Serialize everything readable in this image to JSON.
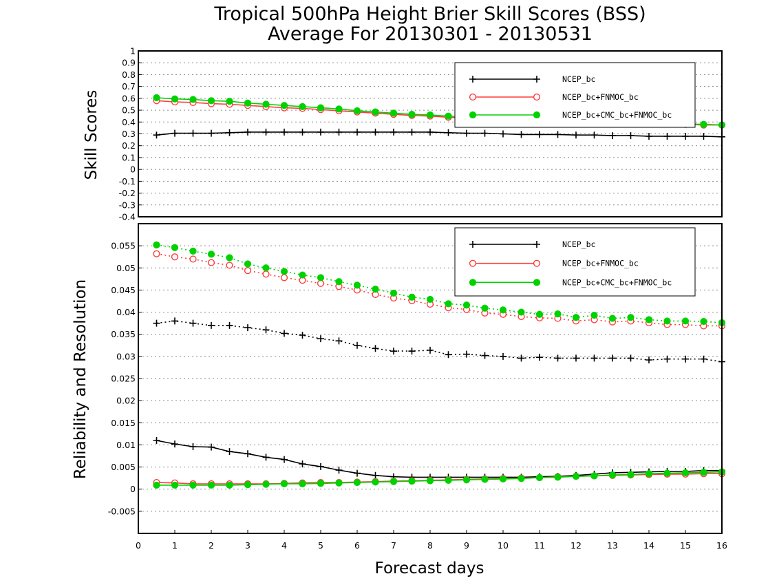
{
  "chart_data": [
    {
      "type": "line",
      "title": "Tropical 500hPa Height Brier Skill Scores (BSS)",
      "subtitle": "Average For 20130301 - 20130531",
      "xlabel": "",
      "ylabel": "Skill Scores",
      "xlim": [
        0,
        16
      ],
      "ylim": [
        -0.4,
        1.0
      ],
      "yticks": [
        -0.4,
        -0.3,
        -0.2,
        -0.1,
        0,
        0.1,
        0.2,
        0.3,
        0.4,
        0.5,
        0.6,
        0.7,
        0.8,
        0.9,
        1
      ],
      "ytick_labels": [
        "-0.4",
        "-0.3",
        "-0.2",
        "-0.1",
        "0",
        "0.1",
        "0.2",
        "0.3",
        "0.4",
        "0.5",
        "0.6",
        "0.7",
        "0.8",
        "0.9",
        "1"
      ],
      "grid": true,
      "legend_position": "top-right",
      "x": [
        0.5,
        1,
        1.5,
        2,
        2.5,
        3,
        3.5,
        4,
        4.5,
        5,
        5.5,
        6,
        6.5,
        7,
        7.5,
        8,
        8.5,
        9,
        9.5,
        10,
        10.5,
        11,
        11.5,
        12,
        12.5,
        13,
        13.5,
        14,
        14.5,
        15,
        15.5,
        16
      ],
      "series": [
        {
          "name": "NCEP_bc",
          "color": "#000000",
          "marker": "plus",
          "values": [
            0.29,
            0.305,
            0.305,
            0.305,
            0.31,
            0.315,
            0.315,
            0.315,
            0.315,
            0.315,
            0.315,
            0.315,
            0.315,
            0.315,
            0.315,
            0.315,
            0.31,
            0.305,
            0.305,
            0.3,
            0.295,
            0.295,
            0.295,
            0.29,
            0.29,
            0.285,
            0.285,
            0.28,
            0.28,
            0.28,
            0.28,
            0.275
          ]
        },
        {
          "name": "NCEP_bc+FNMOC_bc",
          "color": "#ff3c3c",
          "marker": "circle-open",
          "values": [
            0.58,
            0.57,
            0.565,
            0.555,
            0.55,
            0.54,
            0.53,
            0.52,
            0.515,
            0.505,
            0.495,
            0.485,
            0.475,
            0.465,
            0.455,
            0.45,
            0.44,
            0.435,
            0.43,
            0.425,
            0.42,
            0.415,
            0.41,
            0.405,
            0.4,
            0.395,
            0.395,
            0.39,
            0.385,
            0.38,
            0.375,
            0.375
          ]
        },
        {
          "name": "NCEP_bc+CMC_bc+FNMOC_bc",
          "color": "#00d200",
          "marker": "circle-filled",
          "values": [
            0.605,
            0.595,
            0.59,
            0.58,
            0.575,
            0.56,
            0.55,
            0.54,
            0.53,
            0.52,
            0.51,
            0.495,
            0.485,
            0.475,
            0.465,
            0.46,
            0.45,
            0.445,
            0.44,
            0.435,
            0.43,
            0.425,
            0.42,
            0.415,
            0.41,
            0.405,
            0.4,
            0.395,
            0.39,
            0.385,
            0.38,
            0.375
          ]
        }
      ]
    },
    {
      "type": "line",
      "title": "",
      "xlabel": "Forecast days",
      "ylabel": "Reliability and Resolution",
      "xlim": [
        0,
        16
      ],
      "ylim": [
        -0.01,
        0.06
      ],
      "xticks": [
        0,
        1,
        2,
        3,
        4,
        5,
        6,
        7,
        8,
        9,
        10,
        11,
        12,
        13,
        14,
        15,
        16
      ],
      "xtick_labels": [
        "0",
        "1",
        "2",
        "3",
        "4",
        "5",
        "6",
        "7",
        "8",
        "9",
        "10",
        "11",
        "12",
        "13",
        "14",
        "15",
        "16"
      ],
      "yticks": [
        -0.005,
        0,
        0.005,
        0.01,
        0.015,
        0.02,
        0.025,
        0.03,
        0.035,
        0.04,
        0.045,
        0.05,
        0.055
      ],
      "ytick_labels": [
        "-0.005",
        "0",
        "0.005",
        "0.01",
        "0.015",
        "0.02",
        "0.025",
        "0.03",
        "0.035",
        "0.04",
        "0.045",
        "0.05",
        "0.055"
      ],
      "grid": true,
      "legend_position": "top-right",
      "x": [
        0.5,
        1,
        1.5,
        2,
        2.5,
        3,
        3.5,
        4,
        4.5,
        5,
        5.5,
        6,
        6.5,
        7,
        7.5,
        8,
        8.5,
        9,
        9.5,
        10,
        10.5,
        11,
        11.5,
        12,
        12.5,
        13,
        13.5,
        14,
        14.5,
        15,
        15.5,
        16
      ],
      "series": [
        {
          "name": "NCEP_bc",
          "component": "resolution",
          "color": "#000000",
          "marker": "plus",
          "line": "dotted",
          "values": [
            0.0375,
            0.038,
            0.0375,
            0.037,
            0.037,
            0.0365,
            0.036,
            0.0352,
            0.0348,
            0.034,
            0.0335,
            0.0325,
            0.0318,
            0.0312,
            0.0312,
            0.0314,
            0.0304,
            0.0305,
            0.0302,
            0.03,
            0.0296,
            0.0298,
            0.0296,
            0.0296,
            0.0296,
            0.0296,
            0.0296,
            0.0292,
            0.0294,
            0.0294,
            0.0294,
            0.0288
          ]
        },
        {
          "name": "NCEP_bc+FNMOC_bc",
          "component": "resolution",
          "color": "#ff3c3c",
          "marker": "circle-open",
          "line": "dotted",
          "values": [
            0.0532,
            0.0525,
            0.052,
            0.0512,
            0.0506,
            0.0494,
            0.0486,
            0.0478,
            0.0472,
            0.0465,
            0.0458,
            0.045,
            0.044,
            0.0432,
            0.0426,
            0.0418,
            0.041,
            0.0406,
            0.0398,
            0.0395,
            0.039,
            0.0387,
            0.0386,
            0.038,
            0.0383,
            0.0378,
            0.038,
            0.0376,
            0.0372,
            0.0372,
            0.0369,
            0.0369
          ]
        },
        {
          "name": "NCEP_bc+CMC_bc+FNMOC_bc",
          "component": "resolution",
          "color": "#00d200",
          "marker": "circle-filled",
          "line": "dotted",
          "values": [
            0.0552,
            0.0546,
            0.0538,
            0.0531,
            0.0523,
            0.0509,
            0.05,
            0.0492,
            0.0484,
            0.0478,
            0.0469,
            0.0461,
            0.0452,
            0.0443,
            0.0434,
            0.0429,
            0.0419,
            0.0416,
            0.0409,
            0.0405,
            0.04,
            0.0395,
            0.0396,
            0.0388,
            0.0393,
            0.0386,
            0.0388,
            0.0383,
            0.038,
            0.038,
            0.0379,
            0.0376
          ]
        },
        {
          "name": "NCEP_bc",
          "component": "reliability",
          "color": "#000000",
          "marker": "plus",
          "line": "solid",
          "values": [
            0.011,
            0.0102,
            0.0096,
            0.0095,
            0.0085,
            0.008,
            0.0072,
            0.0067,
            0.0057,
            0.0051,
            0.0043,
            0.0036,
            0.0031,
            0.0028,
            0.0027,
            0.0027,
            0.0027,
            0.0027,
            0.0027,
            0.0027,
            0.0027,
            0.0028,
            0.0029,
            0.0031,
            0.0034,
            0.0037,
            0.0038,
            0.0039,
            0.004,
            0.004,
            0.0042,
            0.0042
          ]
        },
        {
          "name": "NCEP_bc+FNMOC_bc",
          "component": "reliability",
          "color": "#ff3c3c",
          "marker": "circle-open",
          "line": "solid",
          "values": [
            0.0015,
            0.0014,
            0.0012,
            0.0012,
            0.0012,
            0.0012,
            0.0012,
            0.0013,
            0.0014,
            0.0015,
            0.0015,
            0.0016,
            0.0017,
            0.0018,
            0.0019,
            0.002,
            0.0021,
            0.0022,
            0.0023,
            0.0024,
            0.0025,
            0.0026,
            0.0028,
            0.0029,
            0.003,
            0.0031,
            0.0032,
            0.0033,
            0.0034,
            0.0034,
            0.0035,
            0.0035
          ]
        },
        {
          "name": "NCEP_bc+CMC_bc+FNMOC_bc",
          "component": "reliability",
          "color": "#00d200",
          "marker": "circle-filled",
          "line": "solid",
          "values": [
            0.0009,
            0.0009,
            0.0009,
            0.0009,
            0.0009,
            0.001,
            0.0011,
            0.0012,
            0.0012,
            0.0013,
            0.0014,
            0.0015,
            0.0016,
            0.0017,
            0.0018,
            0.0019,
            0.002,
            0.0021,
            0.0022,
            0.0023,
            0.0024,
            0.0026,
            0.0027,
            0.0029,
            0.003,
            0.0032,
            0.0033,
            0.0035,
            0.0036,
            0.0037,
            0.0038,
            0.0039
          ]
        }
      ]
    }
  ]
}
